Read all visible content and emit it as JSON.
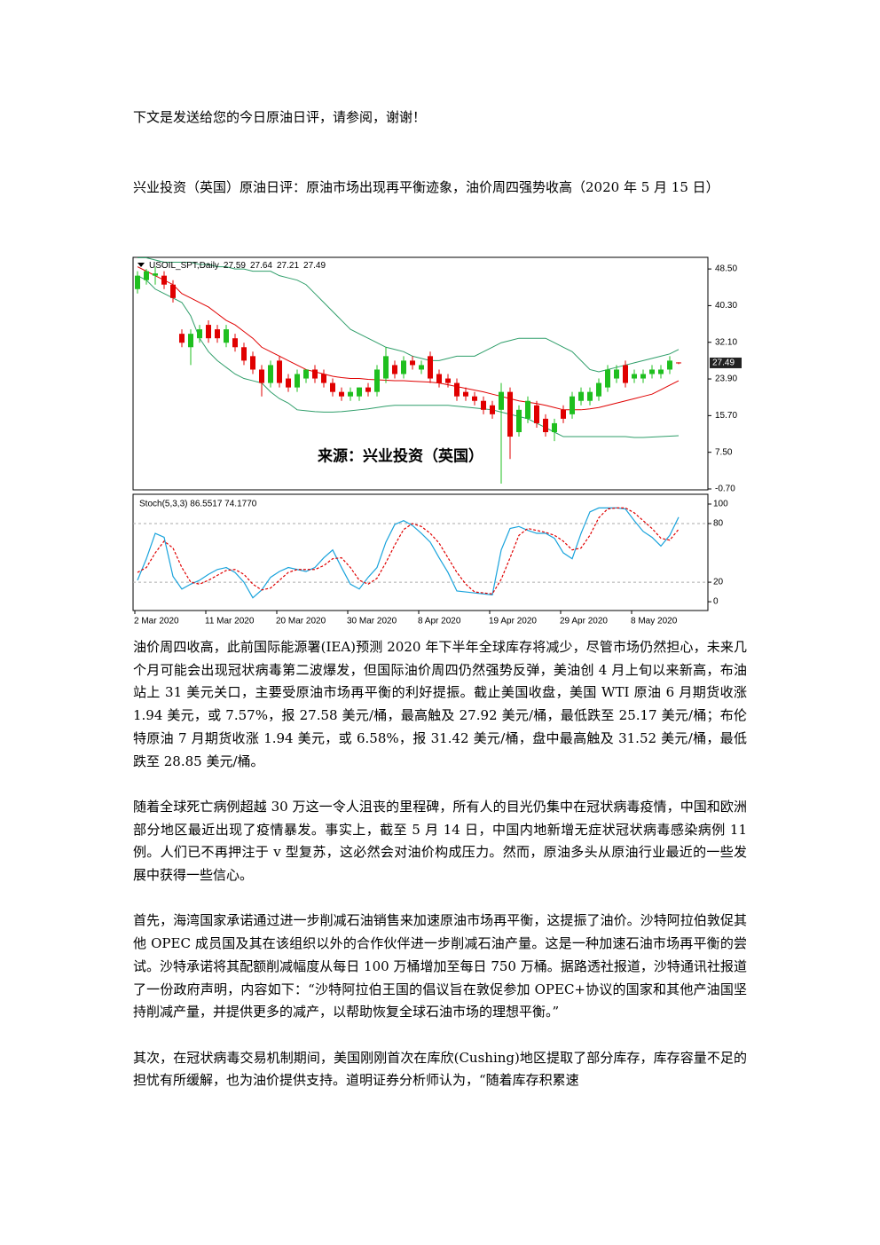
{
  "intro": "下文是发送给您的今日原油日评，请参阅，谢谢！",
  "headline": "兴业投资（英国）原油日评：原油市场出现再平衡迹象，油价周四强势收高（2020 年 5 月 15 日）",
  "chart_data": [
    {
      "type": "candlestick",
      "symbol": "USOIL_SPT,Daily",
      "watermark": "来源：兴业投资（英国）",
      "categories": [
        "2 Mar 2020",
        null,
        null,
        null,
        null,
        null,
        null,
        null,
        "11 Mar 2020",
        null,
        null,
        null,
        null,
        null,
        null,
        null,
        "20 Mar 2020",
        null,
        null,
        null,
        null,
        null,
        null,
        null,
        "30 Mar 2020",
        null,
        null,
        null,
        null,
        null,
        null,
        null,
        "8 Apr 2020",
        null,
        null,
        null,
        null,
        null,
        null,
        null,
        "19 Apr 2020",
        null,
        null,
        null,
        null,
        null,
        null,
        null,
        "29 Apr 2020",
        null,
        null,
        null,
        null,
        null,
        null,
        null,
        "8 May 2020",
        null,
        null,
        null,
        null,
        null
      ],
      "open": [
        44,
        46,
        47,
        47,
        45,
        34,
        31,
        33,
        36,
        35,
        32,
        33,
        31,
        29,
        26,
        23,
        28,
        24,
        22,
        24,
        26,
        25,
        23,
        21,
        20,
        20,
        22,
        21,
        24,
        27,
        25,
        28,
        26,
        29,
        25,
        24,
        23,
        21,
        20,
        19,
        18,
        17,
        21,
        12,
        15,
        18,
        15,
        12,
        17,
        16,
        19,
        19,
        20,
        22,
        24,
        27,
        24,
        24,
        25,
        25,
        26,
        27.59
      ],
      "high": [
        48,
        48.5,
        49,
        48,
        46,
        35,
        35,
        36,
        37,
        36,
        36,
        34,
        32,
        30,
        27,
        28,
        29,
        25,
        26,
        26,
        27,
        26,
        24,
        22,
        22,
        22,
        23,
        27,
        31,
        28,
        29,
        29,
        28,
        30,
        26,
        25,
        24,
        22,
        21,
        20,
        19,
        23,
        22,
        18,
        20,
        19,
        16,
        15,
        18,
        21,
        22,
        22,
        24,
        27,
        27,
        28,
        26,
        26,
        27,
        27,
        29,
        27.64
      ],
      "low": [
        43,
        45,
        45,
        44,
        41,
        31,
        27,
        32,
        32,
        32,
        31,
        30,
        27,
        25,
        20,
        22,
        22,
        21,
        21,
        23,
        23,
        22,
        20,
        19,
        19,
        19,
        20,
        20,
        23,
        24,
        24,
        26,
        25,
        23,
        22,
        22,
        19,
        19,
        18,
        16,
        15,
        0.5,
        6,
        11,
        14,
        13,
        11,
        10,
        14,
        15,
        18,
        18,
        19,
        21,
        23,
        22,
        23,
        23,
        24,
        24,
        25,
        27.21
      ],
      "close": [
        47,
        48,
        47.5,
        45,
        42,
        32,
        34,
        35,
        33,
        33,
        35,
        31,
        28,
        26,
        23,
        27,
        23,
        22,
        25,
        26,
        24,
        23,
        21,
        20,
        21,
        22,
        21,
        26,
        29,
        25,
        28,
        27,
        27,
        24,
        23,
        23,
        20,
        20,
        19,
        17,
        16,
        21,
        11,
        17,
        19,
        14,
        12,
        14,
        15,
        20,
        21,
        21,
        23,
        26,
        26,
        23,
        25,
        25,
        26,
        26,
        28,
        27.49
      ],
      "up_color": "#1fbf1f",
      "down_color": "#e00000",
      "bands": [
        {
          "color": "#2f9e6a",
          "values": [
            51,
            51,
            50.5,
            50,
            50,
            50,
            50,
            49.5,
            49.5,
            49,
            49,
            48.5,
            48.5,
            48,
            48,
            48,
            47,
            46.5,
            46,
            45,
            43,
            41,
            39,
            37,
            35,
            34,
            33,
            32,
            31,
            30.5,
            30,
            29,
            28.5,
            28,
            28,
            28.5,
            29,
            29,
            29,
            30,
            31,
            32,
            32.5,
            33,
            33,
            33,
            33,
            32,
            31,
            30,
            28,
            26,
            25.5,
            26,
            26.5,
            27,
            27.5,
            28,
            28.5,
            29,
            29.5,
            30.5
          ]
        },
        {
          "color": "#e00000",
          "values": [
            49,
            48,
            47,
            46,
            45,
            43,
            42,
            41,
            40,
            38.5,
            37,
            36,
            34.5,
            33,
            31,
            30,
            29,
            28,
            27,
            26,
            25.5,
            25,
            24.5,
            24.2,
            24,
            24,
            23.8,
            23.7,
            23.6,
            23.5,
            23.5,
            23.4,
            23.3,
            23.2,
            23,
            22.6,
            22.2,
            21.8,
            21.4,
            21,
            20.5,
            20,
            19.5,
            19,
            18.7,
            18.4,
            18,
            17.5,
            17,
            17,
            17,
            17.2,
            17.5,
            18,
            18.5,
            19,
            19.5,
            20,
            20.5,
            21.5,
            22.5,
            23.5
          ]
        },
        {
          "color": "#2f9e6a",
          "values": [
            47,
            46,
            44,
            43,
            42,
            41,
            38,
            33,
            30,
            28,
            26.5,
            25,
            24,
            23.5,
            23,
            21,
            19.5,
            18.5,
            17,
            16.8,
            16.6,
            16.5,
            16.5,
            16.6,
            16.8,
            17,
            17.2,
            17.5,
            17.8,
            18,
            18,
            18,
            18,
            18,
            18,
            18,
            17.8,
            17.6,
            17.4,
            17.2,
            17,
            16.5,
            16,
            15.5,
            15,
            14,
            13,
            12,
            11,
            11,
            11,
            11,
            11,
            11,
            11,
            11,
            10.8,
            10.8,
            10.9,
            11,
            11.1,
            11.2
          ]
        }
      ],
      "ylim": [
        -0.9,
        51.1
      ],
      "yticks": [
        {
          "value": 48.5,
          "label": "48.50"
        },
        {
          "value": 40.3,
          "label": "40.30"
        },
        {
          "value": 32.1,
          "label": "32.10"
        },
        {
          "value": 23.9,
          "label": "23.90"
        },
        {
          "value": 15.7,
          "label": "15.70"
        },
        {
          "value": 7.5,
          "label": "7.50"
        },
        {
          "value": -0.7,
          "label": "-0.70"
        }
      ]
    },
    {
      "type": "line",
      "label": "Stoch(5,3,3) 86.5517 74.1770",
      "series": [
        {
          "color": "#19a3dc",
          "dashed": false,
          "values": [
            22,
            44,
            70,
            66,
            26,
            13,
            18,
            22,
            28,
            33,
            35,
            30,
            20,
            4,
            12,
            25,
            31,
            35,
            33,
            31,
            35,
            45,
            53,
            35,
            18,
            13,
            25,
            35,
            61,
            79,
            83,
            78,
            70,
            61,
            45,
            30,
            11,
            10,
            9,
            8,
            7,
            53,
            75,
            77,
            73,
            70,
            70,
            65,
            50,
            44,
            70,
            92,
            96,
            96,
            96,
            95,
            83,
            72,
            66,
            57,
            68,
            86.5517
          ]
        },
        {
          "color": "#e00000",
          "dashed": true,
          "values": [
            30,
            35,
            50,
            62,
            55,
            35,
            20,
            18,
            22,
            27,
            32,
            33,
            28,
            18,
            12,
            14,
            22,
            30,
            33,
            33,
            33,
            37,
            44,
            45,
            35,
            22,
            18,
            24,
            40,
            58,
            74,
            80,
            77,
            70,
            60,
            45,
            30,
            18,
            10,
            9,
            8,
            23,
            45,
            68,
            75,
            73,
            71,
            68,
            62,
            53,
            55,
            68,
            86,
            95,
            96,
            96,
            91,
            83,
            75,
            65,
            63,
            74.177
          ]
        }
      ],
      "ylim": [
        -9,
        110
      ],
      "yticks": [
        100,
        80,
        20,
        0
      ],
      "levels": [
        80,
        20
      ]
    }
  ],
  "paragraphs": [
    "油价周四收高，此前国际能源署(IEA)预测 2020 年下半年全球库存将减少，尽管市场仍然担心，未来几个月可能会出现冠状病毒第二波爆发，但国际油价周四仍然强势反弹，美油创 4 月上旬以来新高，布油站上 31 美元关口，主要受原油市场再平衡的利好提振。截止美国收盘，美国 WTI 原油 6 月期货收涨 1.94 美元，或 7.57%，报 27.58 美元/桶，最高触及 27.92 美元/桶，最低跌至 25.17 美元/桶；布伦特原油 7 月期货收涨 1.94 美元，或 6.58%，报 31.42 美元/桶，盘中最高触及 31.52 美元/桶，最低跌至 28.85 美元/桶。",
    "随着全球死亡病例超越 30 万这一令人沮丧的里程碑，所有人的目光仍集中在冠状病毒疫情，中国和欧洲部分地区最近出现了疫情暴发。事实上，截至 5 月 14 日，中国内地新增无症状冠状病毒感染病例 11 例。人们已不再押注于 v 型复苏，这必然会对油价构成压力。然而，原油多头从原油行业最近的一些发展中获得一些信心。",
    "首先，海湾国家承诺通过进一步削减石油销售来加速原油市场再平衡，这提振了油价。沙特阿拉伯敦促其他 OPEC 成员国及其在该组织以外的合作伙伴进一步削减石油产量。这是一种加速石油市场再平衡的尝试。沙特承诺将其配额削减幅度从每日 100 万桶增加至每日 750 万桶。据路透社报道，沙特通讯社报道了一份政府声明，内容如下：“沙特阿拉伯王国的倡议旨在敦促参加 OPEC+协议的国家和其他产油国坚持削减产量，并提供更多的减产，以帮助恢复全球石油市场的理想平衡。”",
    "其次，在冠状病毒交易机制期间，美国刚刚首次在库欣(Cushing)地区提取了部分库存，库存容量不足的担忧有所缓解，也为油价提供支持。道明证券分析师认为，“随着库存积累速"
  ]
}
